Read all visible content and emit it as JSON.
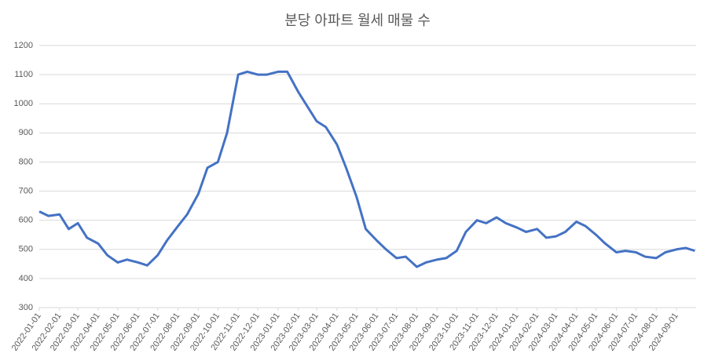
{
  "chart_data": {
    "type": "line",
    "title": "분당 아파트 월세 매물 수",
    "x": [
      "2022-01-01",
      "2022-01-15",
      "2022-02-01",
      "2022-02-15",
      "2022-03-01",
      "2022-03-15",
      "2022-04-01",
      "2022-04-15",
      "2022-05-01",
      "2022-05-15",
      "2022-06-01",
      "2022-06-15",
      "2022-07-01",
      "2022-07-15",
      "2022-08-01",
      "2022-08-15",
      "2022-09-01",
      "2022-09-15",
      "2022-10-01",
      "2022-10-15",
      "2022-11-01",
      "2022-11-15",
      "2022-12-01",
      "2022-12-15",
      "2023-01-01",
      "2023-01-15",
      "2023-02-01",
      "2023-02-15",
      "2023-03-01",
      "2023-03-15",
      "2023-04-01",
      "2023-04-15",
      "2023-05-01",
      "2023-05-15",
      "2023-06-01",
      "2023-06-15",
      "2023-07-01",
      "2023-07-15",
      "2023-08-01",
      "2023-08-15",
      "2023-09-01",
      "2023-09-15",
      "2023-10-01",
      "2023-10-15",
      "2023-11-01",
      "2023-11-15",
      "2023-12-01",
      "2023-12-15",
      "2024-01-01",
      "2024-01-15",
      "2024-02-01",
      "2024-02-15",
      "2024-03-01",
      "2024-03-15",
      "2024-04-01",
      "2024-04-15",
      "2024-05-01",
      "2024-05-15",
      "2024-06-01",
      "2024-06-15",
      "2024-07-01",
      "2024-07-15",
      "2024-08-01",
      "2024-08-15",
      "2024-09-01",
      "2024-09-15",
      "2024-09-29"
    ],
    "series": [
      {
        "name": "월세 매물 수",
        "color": "#4472c4",
        "values": [
          630,
          615,
          620,
          570,
          590,
          540,
          520,
          480,
          455,
          465,
          455,
          445,
          480,
          530,
          580,
          620,
          690,
          780,
          800,
          900,
          1100,
          1110,
          1100,
          1100,
          1110,
          1110,
          1040,
          990,
          940,
          920,
          860,
          780,
          680,
          570,
          530,
          500,
          470,
          475,
          440,
          455,
          465,
          470,
          495,
          560,
          600,
          590,
          610,
          590,
          575,
          560,
          570,
          540,
          545,
          560,
          595,
          580,
          550,
          520,
          490,
          495,
          490,
          475,
          470,
          490,
          500,
          505,
          495
        ]
      }
    ],
    "xlim": [
      "2022-01-01",
      "2024-10-01"
    ],
    "xticks": [
      "2022-01-01",
      "2022-02-01",
      "2022-03-01",
      "2022-04-01",
      "2022-05-01",
      "2022-06-01",
      "2022-07-01",
      "2022-08-01",
      "2022-09-01",
      "2022-10-01",
      "2022-11-01",
      "2022-12-01",
      "2023-01-01",
      "2023-02-01",
      "2023-03-01",
      "2023-04-01",
      "2023-05-01",
      "2023-06-01",
      "2023-07-01",
      "2023-08-01",
      "2023-09-01",
      "2023-10-01",
      "2023-11-01",
      "2023-12-01",
      "2024-01-01",
      "2024-02-01",
      "2024-03-01",
      "2024-04-01",
      "2024-05-01",
      "2024-06-01",
      "2024-07-01",
      "2024-08-01",
      "2024-09-01"
    ],
    "ylim": [
      300,
      1200
    ],
    "yticks": [
      300,
      400,
      500,
      600,
      700,
      800,
      900,
      1000,
      1100,
      1200
    ],
    "grid": true
  }
}
